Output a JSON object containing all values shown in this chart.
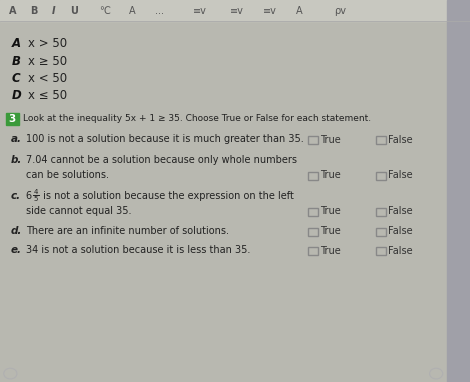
{
  "bg_color": "#b8b8b0",
  "page_bg": "#d8d8d0",
  "toolbar_bg": "#c8c8c0",
  "text_color": "#222222",
  "label_bold_color": "#111111",
  "dim_color": "#444444",
  "box_edge_color": "#888888",
  "tf_text_color": "#333333",
  "green_box_color": "#3a9a3a",
  "toolbar_text_color": "#555555",
  "options": [
    {
      "letter": "A",
      "text": "x > 50"
    },
    {
      "letter": "B",
      "text": "x ≥ 50"
    },
    {
      "letter": "C",
      "text": "x < 50"
    },
    {
      "letter": "D",
      "text": "x ≤ 50"
    }
  ],
  "question_text": "Look at the inequality 5x + 1 ≥ 35. Choose True or False for each statement.",
  "stmt_a_line1": "100 is not a solution because it is much greater than 35.",
  "stmt_b_line1": "7.04 cannot be a solution because only whole numbers",
  "stmt_b_line2": "can be solutions.",
  "stmt_c_line1": " is not a solution because the expression on the left",
  "stmt_c_line2": "side cannot equal 35.",
  "stmt_d_line1": "There are an infinite number of solutions.",
  "stmt_e_line1": "34 is not a solution because it is less than 35."
}
